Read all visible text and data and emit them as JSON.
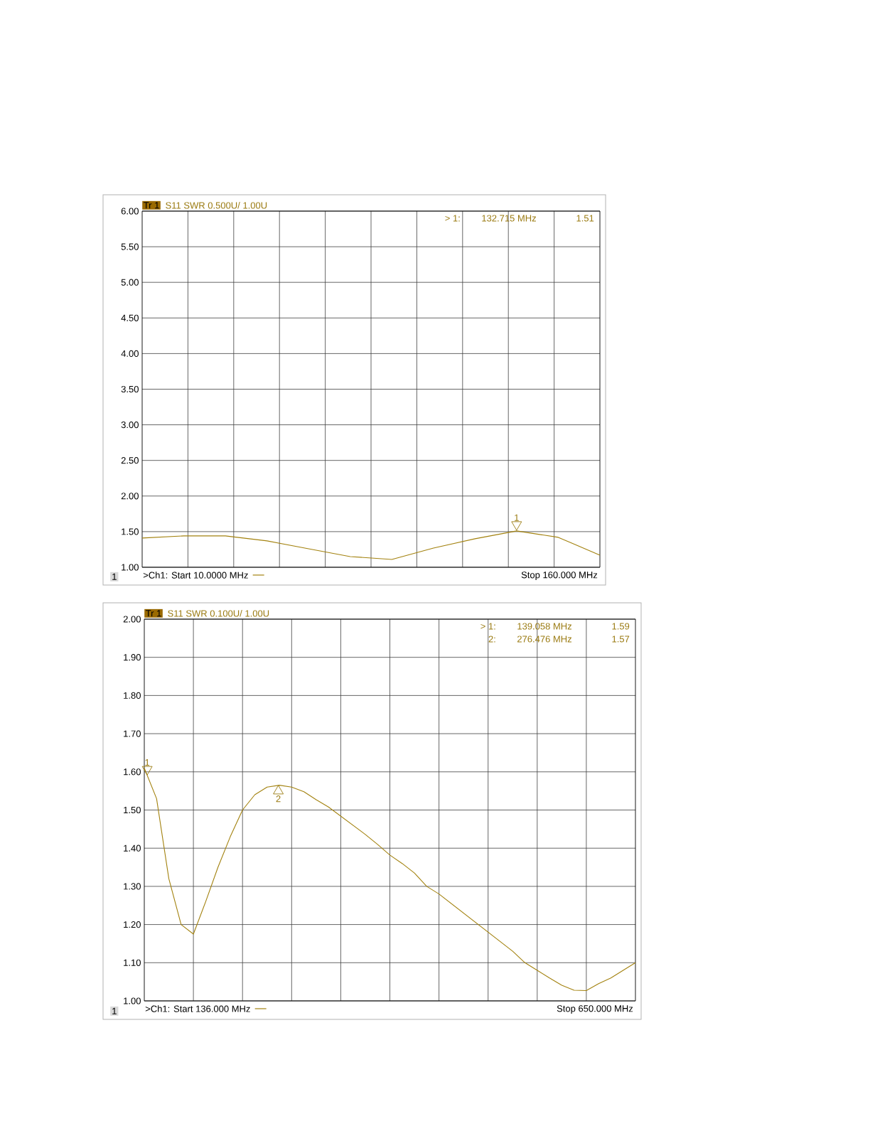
{
  "chart_data": [
    {
      "type": "line",
      "title": "S11 SWR 0.500U/  1.00U",
      "categories": [
        null,
        null,
        null,
        null,
        null,
        null,
        null,
        null,
        null,
        null,
        null,
        null
      ],
      "series": [
        {
          "color": "#a3820f",
          "values": [
            1.41,
            1.44,
            1.44,
            1.37,
            1.26,
            1.15,
            1.11,
            1.27,
            1.4,
            1.51,
            1.42,
            1.17
          ]
        }
      ],
      "ylim": [
        1,
        6
      ],
      "yticks": [
        {
          "value": 1,
          "label": "1.00"
        },
        {
          "value": 1.5,
          "label": "1.50"
        },
        {
          "value": 2,
          "label": "2.00"
        },
        {
          "value": 2.5,
          "label": "2.50"
        },
        {
          "value": 3,
          "label": "3.00"
        },
        {
          "value": 3.5,
          "label": "3.50"
        },
        {
          "value": 4,
          "label": "4.00"
        },
        {
          "value": 4.5,
          "label": "4.50"
        },
        {
          "value": 5,
          "label": "5.00"
        },
        {
          "value": 5.5,
          "label": "5.50"
        },
        {
          "value": 6,
          "label": "6.00"
        }
      ],
      "grid": true,
      "annotations": [
        "Tr 1",
        "1",
        ">Ch1: Start  10.0000 MHz",
        "Stop  160.000 MHz",
        "1",
        "> 1:",
        "132.715 MHz",
        "1.51"
      ]
    },
    {
      "type": "line",
      "title": "S11 SWR 0.100U/  1.00U",
      "categories": [
        null,
        null,
        null,
        null,
        null,
        null,
        null,
        null,
        null,
        null,
        null,
        null,
        null,
        null,
        null,
        null,
        null,
        null,
        null,
        null,
        null,
        null,
        null,
        null,
        null,
        null,
        null,
        null,
        null,
        null,
        null,
        null,
        null,
        null,
        null,
        null,
        null,
        null,
        null,
        null,
        null
      ],
      "series": [
        {
          "color": "#a3820f",
          "values": [
            1.61,
            1.53,
            1.32,
            1.2,
            1.175,
            1.26,
            1.35,
            1.43,
            1.5,
            1.54,
            1.56,
            1.565,
            1.56,
            1.548,
            1.527,
            1.508,
            1.484,
            1.46,
            1.436,
            1.41,
            1.382,
            1.36,
            1.335,
            1.3,
            1.28,
            1.255,
            1.23,
            1.205,
            1.18,
            1.155,
            1.13,
            1.1,
            1.08,
            1.06,
            1.041,
            1.028,
            1.027,
            1.045,
            1.06,
            1.08,
            1.1
          ]
        }
      ],
      "ylim": [
        1,
        2
      ],
      "yticks": [
        {
          "value": 1,
          "label": "1.00"
        },
        {
          "value": 1.1,
          "label": "1.10"
        },
        {
          "value": 1.2,
          "label": "1.20"
        },
        {
          "value": 1.3,
          "label": "1.30"
        },
        {
          "value": 1.4,
          "label": "1.40"
        },
        {
          "value": 1.5,
          "label": "1.50"
        },
        {
          "value": 1.6,
          "label": "1.60"
        },
        {
          "value": 1.7,
          "label": "1.70"
        },
        {
          "value": 1.8,
          "label": "1.80"
        },
        {
          "value": 1.9,
          "label": "1.90"
        },
        {
          "value": 2,
          "label": "2.00"
        }
      ],
      "grid": true,
      "annotations": [
        "Tr 1",
        "1",
        ">Ch1: Start  136.000 MHz",
        "Stop  650.000 MHz",
        "1",
        "2",
        "> 1:",
        "139.058 MHz",
        "1.59",
        "2:",
        "276.476 MHz",
        "1.57"
      ]
    }
  ]
}
